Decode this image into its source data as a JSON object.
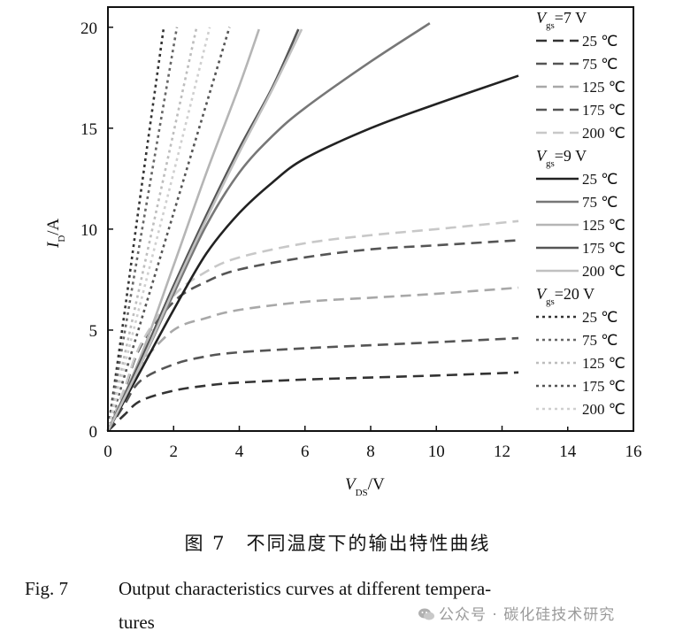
{
  "chart_data": {
    "type": "line",
    "xlabel": {
      "main": "V",
      "sub": "DS",
      "unit": "/V"
    },
    "ylabel": {
      "main": "I",
      "sub": "D",
      "unit": "/A"
    },
    "xlim": [
      0,
      16
    ],
    "ylim": [
      0,
      21
    ],
    "xticks": [
      0,
      2,
      4,
      6,
      8,
      10,
      12,
      14,
      16
    ],
    "yticks": [
      0,
      5,
      10,
      15,
      20
    ],
    "grid": false,
    "legend_position": "right",
    "legend_groups": [
      {
        "title_main": "V",
        "title_sub": "gs",
        "title_rest": "=7 V",
        "style": "dashed",
        "entries": [
          "25 ℃",
          "75 ℃",
          "125 ℃",
          "175 ℃",
          "200 ℃"
        ]
      },
      {
        "title_main": "V",
        "title_sub": "gs",
        "title_rest": "=9 V",
        "style": "solid",
        "entries": [
          "25 ℃",
          "75 ℃",
          "125 ℃",
          "175 ℃",
          "200 ℃"
        ]
      },
      {
        "title_main": "V",
        "title_sub": "gs",
        "title_rest": "=20 V",
        "style": "dotted",
        "entries": [
          "25 ℃",
          "75 ℃",
          "125 ℃",
          "175 ℃",
          "200 ℃"
        ]
      }
    ],
    "series": [
      {
        "group": "7 V",
        "temp": "25 ℃",
        "style": "dashed",
        "color": "#333333",
        "x": [
          0,
          0.5,
          1,
          2,
          3,
          4,
          6,
          8,
          10,
          12.5
        ],
        "y": [
          0,
          0.8,
          1.5,
          2.0,
          2.25,
          2.4,
          2.55,
          2.65,
          2.75,
          2.9
        ]
      },
      {
        "group": "7 V",
        "temp": "75 ℃",
        "style": "dashed",
        "color": "#555555",
        "x": [
          0,
          0.5,
          1,
          2,
          3,
          4,
          6,
          8,
          10,
          12.5
        ],
        "y": [
          0,
          1.3,
          2.5,
          3.3,
          3.7,
          3.9,
          4.1,
          4.25,
          4.4,
          4.6
        ]
      },
      {
        "group": "7 V",
        "temp": "125 ℃",
        "style": "dashed",
        "color": "#a8a8a8",
        "x": [
          0,
          0.5,
          1,
          2,
          3,
          4,
          6,
          8,
          10,
          12.5
        ],
        "y": [
          0,
          1.8,
          3.3,
          5.0,
          5.6,
          6.0,
          6.4,
          6.6,
          6.8,
          7.1
        ]
      },
      {
        "group": "7 V",
        "temp": "175 ℃",
        "style": "dashed",
        "color": "#555555",
        "x": [
          0,
          0.5,
          1,
          2,
          3,
          4,
          6,
          8,
          10,
          12.5
        ],
        "y": [
          0,
          2.0,
          4.2,
          6.4,
          7.4,
          8.0,
          8.6,
          9.0,
          9.2,
          9.45
        ]
      },
      {
        "group": "7 V",
        "temp": "200 ℃",
        "style": "dashed",
        "color": "#c8c8c8",
        "x": [
          0,
          0.5,
          1,
          2,
          3,
          4,
          6,
          8,
          10,
          12.5
        ],
        "y": [
          0,
          2.1,
          4.3,
          6.7,
          7.9,
          8.6,
          9.3,
          9.7,
          10.0,
          10.4
        ]
      },
      {
        "group": "9 V",
        "temp": "25 ℃",
        "style": "solid",
        "color": "#222222",
        "x": [
          0,
          1,
          2,
          3,
          4,
          5,
          6,
          8,
          10,
          12.5
        ],
        "y": [
          0,
          3.0,
          6.0,
          8.8,
          10.8,
          12.3,
          13.5,
          15.0,
          16.2,
          17.6
        ]
      },
      {
        "group": "9 V",
        "temp": "75 ℃",
        "style": "solid",
        "color": "#777777",
        "x": [
          0,
          1,
          2,
          3,
          4,
          5,
          6,
          8,
          9.8
        ],
        "y": [
          0,
          3.3,
          6.8,
          10.2,
          12.8,
          14.6,
          16.0,
          18.3,
          20.2
        ]
      },
      {
        "group": "9 V",
        "temp": "125 ℃",
        "style": "solid",
        "color": "#b5b5b5",
        "x": [
          0,
          1,
          2,
          3,
          4,
          4.6
        ],
        "y": [
          0,
          3.7,
          8.2,
          12.8,
          17.1,
          19.9
        ]
      },
      {
        "group": "9 V",
        "temp": "175 ℃",
        "style": "solid",
        "color": "#555555",
        "x": [
          0,
          1,
          2,
          3,
          4,
          5,
          5.8
        ],
        "y": [
          0,
          3.5,
          7.2,
          10.7,
          14.0,
          17.0,
          19.9
        ]
      },
      {
        "group": "9 V",
        "temp": "200 ℃",
        "style": "solid",
        "color": "#c0c0c0",
        "x": [
          0,
          1,
          2,
          3,
          4,
          5,
          5.9
        ],
        "y": [
          0,
          3.3,
          7.0,
          10.5,
          13.8,
          16.9,
          19.9
        ]
      },
      {
        "group": "20 V",
        "temp": "25 ℃",
        "style": "dotted",
        "color": "#333333",
        "x": [
          0,
          0.5,
          1,
          1.7
        ],
        "y": [
          0,
          5.8,
          11.8,
          20.0
        ]
      },
      {
        "group": "20 V",
        "temp": "75 ℃",
        "style": "dotted",
        "color": "#666666",
        "x": [
          0,
          0.5,
          1,
          2.1
        ],
        "y": [
          0,
          4.8,
          9.6,
          20.0
        ]
      },
      {
        "group": "20 V",
        "temp": "125 ℃",
        "style": "dotted",
        "color": "#bdbdbd",
        "x": [
          0,
          1,
          2,
          2.7
        ],
        "y": [
          0,
          7.4,
          14.8,
          20.0
        ]
      },
      {
        "group": "20 V",
        "temp": "175 ℃",
        "style": "dotted",
        "color": "#555555",
        "x": [
          0,
          1,
          2,
          3.7
        ],
        "y": [
          0,
          5.4,
          10.8,
          20.0
        ]
      },
      {
        "group": "20 V",
        "temp": "200 ℃",
        "style": "dotted",
        "color": "#cfcfcf",
        "x": [
          0,
          1,
          2,
          3.1
        ],
        "y": [
          0,
          6.4,
          12.8,
          20.0
        ]
      }
    ]
  },
  "caption": {
    "cn": "图 7　不同温度下的输出特性曲线",
    "en_fig": "Fig. 7",
    "en_line1": "Output characteristics curves at different tempera-",
    "en_line2": "tures"
  },
  "watermark": {
    "text": "公众号 · 碳化硅技术研究",
    "icon": "wechat-icon"
  }
}
